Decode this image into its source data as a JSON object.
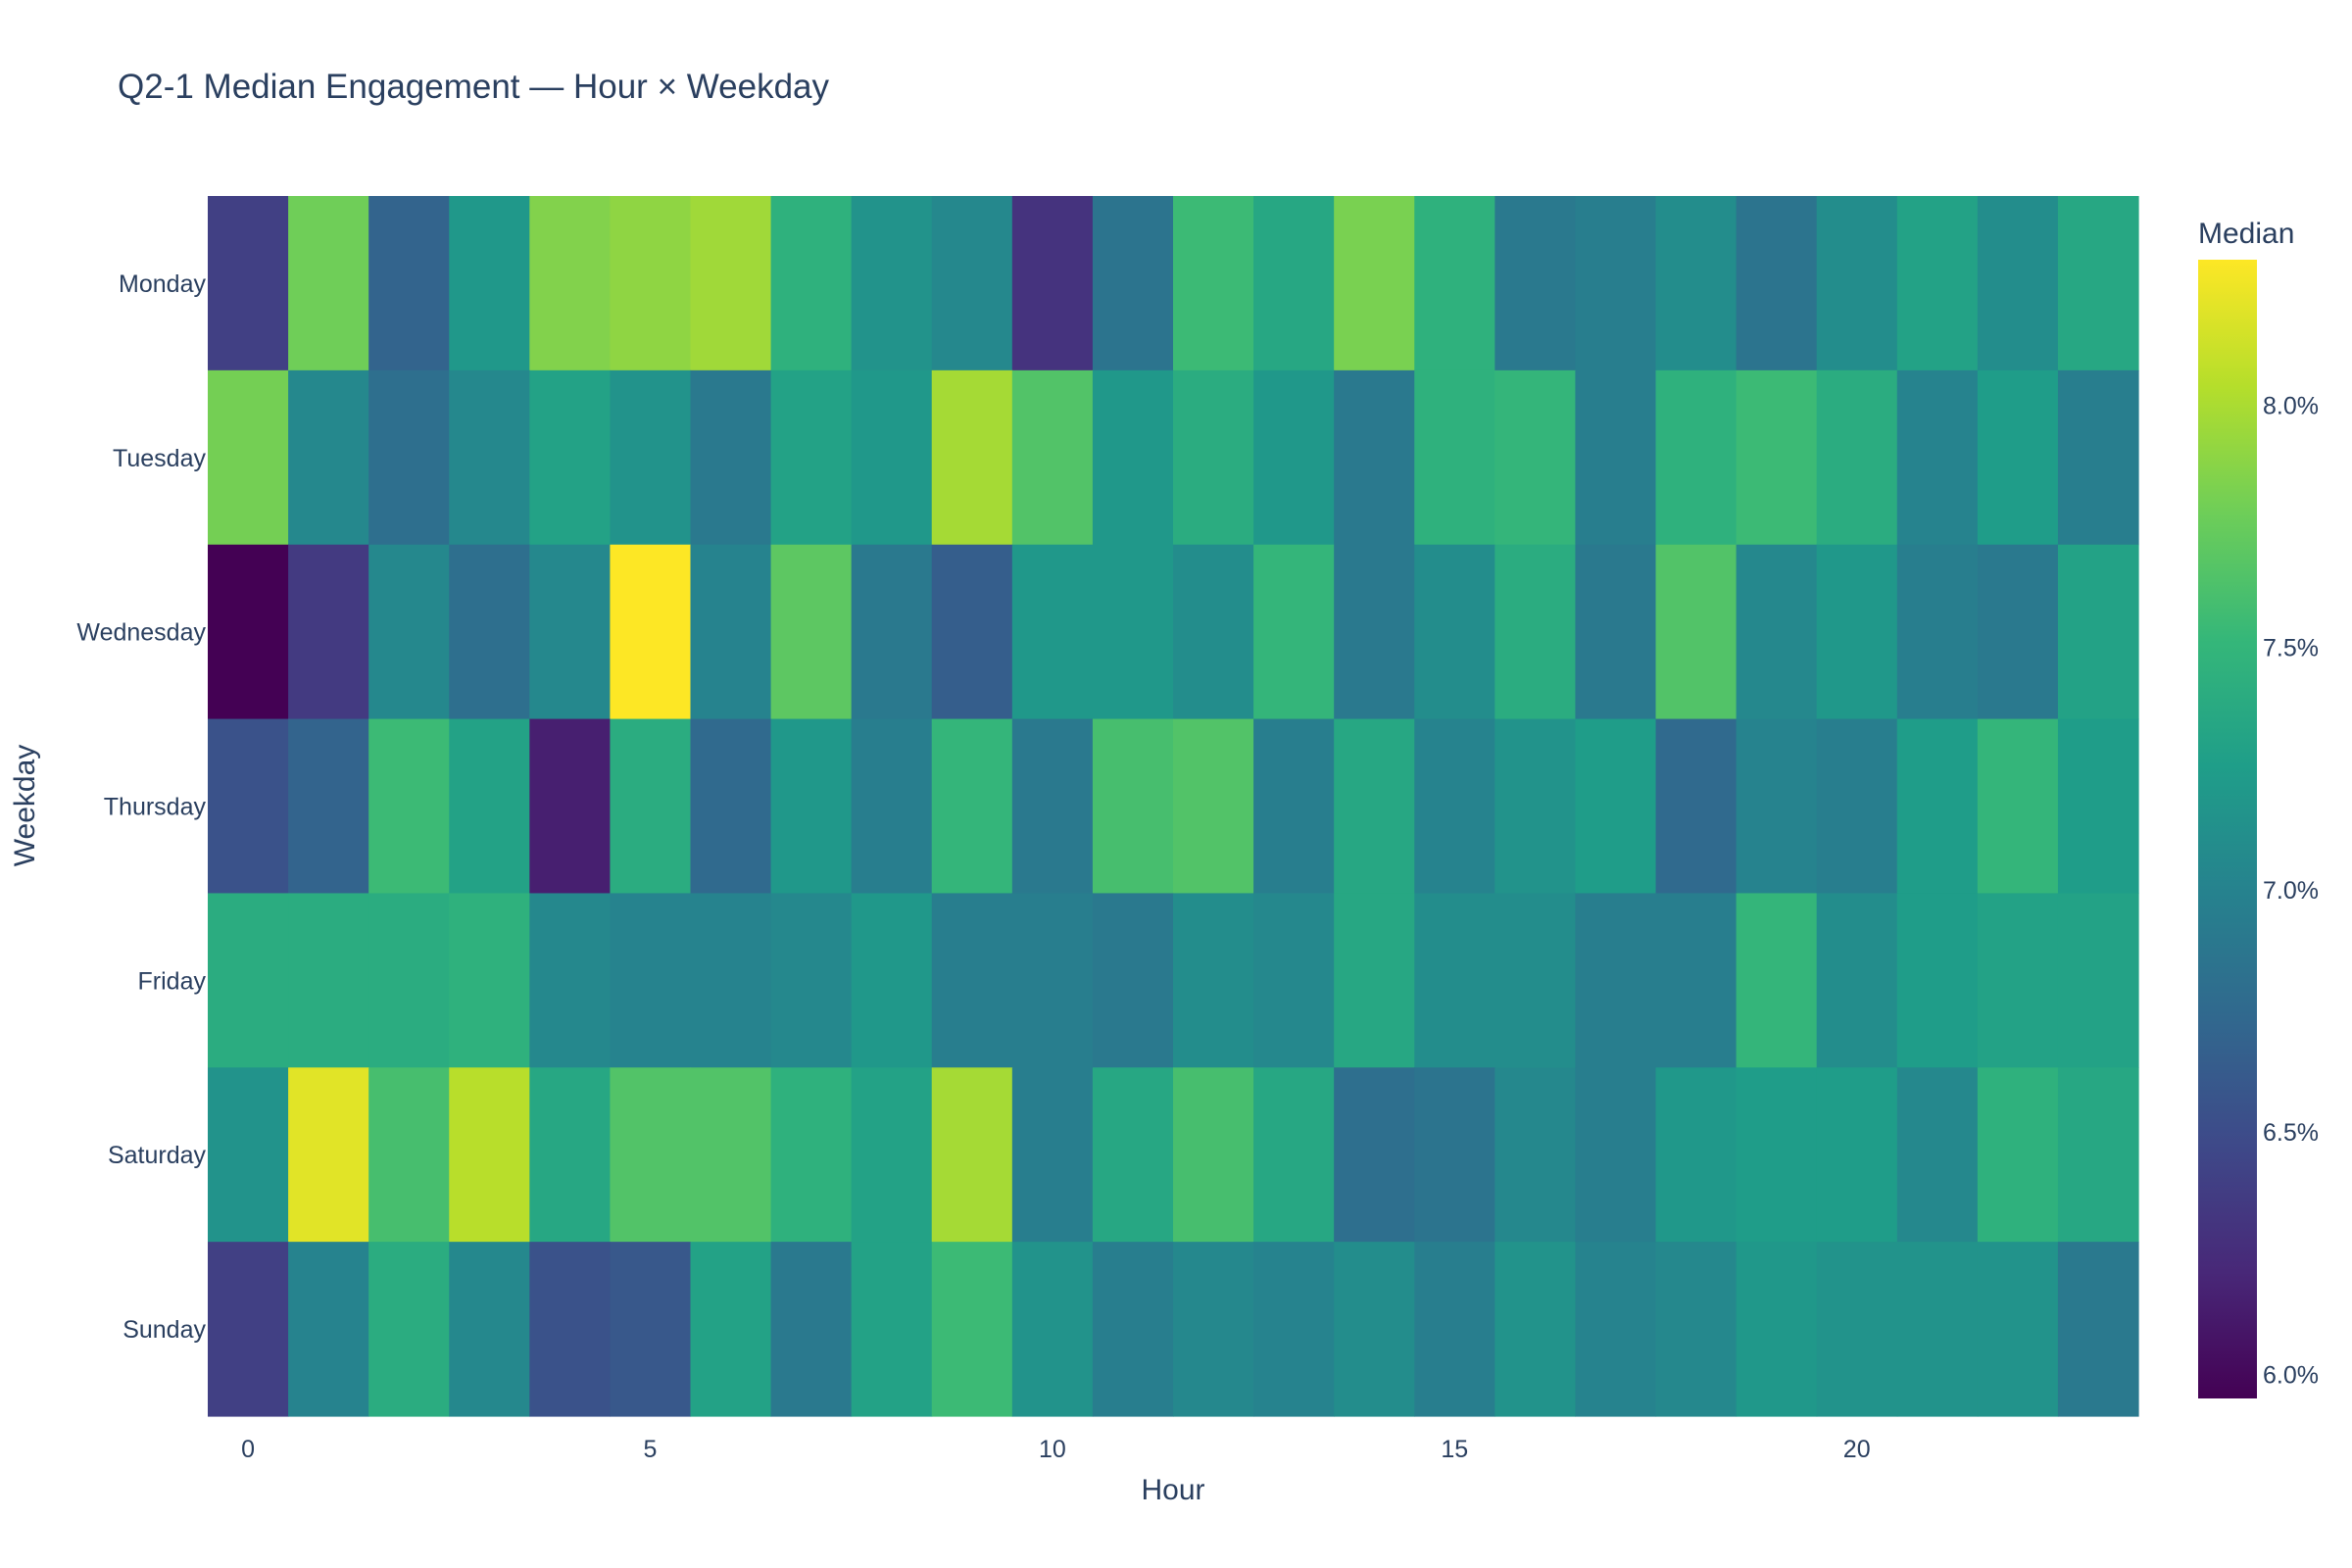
{
  "chart_data": {
    "type": "heatmap",
    "title": "Q2-1 Median Engagement — Hour × Weekday",
    "xlabel": "Hour",
    "ylabel": "Weekday",
    "x": [
      0,
      1,
      2,
      3,
      4,
      5,
      6,
      7,
      8,
      9,
      10,
      11,
      12,
      13,
      14,
      15,
      16,
      17,
      18,
      19,
      20,
      21,
      22,
      23
    ],
    "x_tick_labels": [
      "0",
      "5",
      "10",
      "15",
      "20"
    ],
    "x_tick_values": [
      0,
      5,
      10,
      15,
      20
    ],
    "y": [
      "Monday",
      "Tuesday",
      "Wednesday",
      "Thursday",
      "Friday",
      "Saturday",
      "Sunday"
    ],
    "z_unit": "percent",
    "z": [
      [
        6.4,
        7.78,
        6.7,
        7.2,
        7.85,
        7.9,
        7.96,
        7.45,
        7.15,
        7.05,
        6.3,
        6.85,
        7.55,
        7.35,
        7.82,
        7.45,
        6.9,
        6.95,
        7.1,
        6.85,
        7.1,
        7.3,
        7.1,
        7.35
      ],
      [
        7.8,
        7.05,
        6.8,
        7.05,
        7.3,
        7.15,
        6.9,
        7.3,
        7.2,
        7.98,
        7.65,
        7.2,
        7.4,
        7.2,
        6.9,
        7.45,
        7.5,
        6.95,
        7.45,
        7.55,
        7.4,
        7.0,
        7.25,
        6.95
      ],
      [
        5.95,
        6.35,
        7.05,
        6.8,
        7.05,
        8.3,
        7.0,
        7.7,
        6.9,
        6.65,
        7.2,
        7.2,
        7.1,
        7.5,
        6.9,
        7.1,
        7.4,
        6.9,
        7.65,
        7.05,
        7.2,
        6.95,
        6.9,
        7.3
      ],
      [
        6.55,
        6.7,
        7.55,
        7.3,
        6.15,
        7.4,
        6.75,
        7.2,
        6.95,
        7.5,
        6.9,
        7.6,
        7.65,
        6.95,
        7.35,
        7.0,
        7.15,
        7.25,
        6.75,
        7.0,
        6.95,
        7.25,
        7.5,
        7.25
      ],
      [
        7.4,
        7.4,
        7.4,
        7.45,
        7.05,
        7.0,
        7.0,
        7.05,
        7.2,
        6.95,
        6.95,
        6.9,
        7.1,
        7.05,
        7.35,
        7.1,
        7.1,
        6.95,
        6.95,
        7.5,
        7.1,
        7.25,
        7.3,
        7.3
      ],
      [
        7.15,
        8.2,
        7.6,
        8.05,
        7.35,
        7.65,
        7.65,
        7.45,
        7.3,
        7.98,
        6.95,
        7.35,
        7.6,
        7.35,
        6.8,
        6.85,
        7.05,
        6.95,
        7.2,
        7.25,
        7.25,
        7.05,
        7.45,
        7.35
      ],
      [
        6.4,
        7.0,
        7.4,
        7.05,
        6.55,
        6.6,
        7.3,
        6.9,
        7.3,
        7.55,
        7.15,
        6.95,
        7.05,
        7.0,
        7.1,
        6.95,
        7.15,
        7.0,
        7.05,
        7.2,
        7.15,
        7.15,
        7.15,
        6.9
      ]
    ],
    "zmin": 5.95,
    "zmax": 8.3,
    "colorscale": [
      "#440154",
      "#482878",
      "#3e4989",
      "#31688e",
      "#26828e",
      "#1f9e89",
      "#35b779",
      "#6ece58",
      "#b5de2b",
      "#fde725"
    ],
    "colorbar": {
      "title": "Median",
      "tick_values": [
        6.0,
        6.5,
        7.0,
        7.5,
        8.0
      ],
      "tick_labels": [
        "6.0%",
        "6.5%",
        "7.0%",
        "7.5%",
        "8.0%"
      ]
    },
    "grid": false,
    "legend": "colorbar-right"
  }
}
